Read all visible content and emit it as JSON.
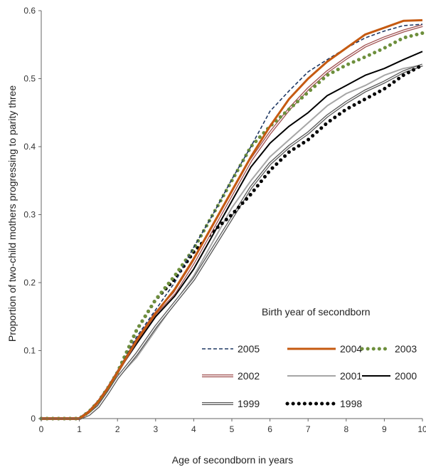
{
  "chart_data": {
    "type": "line",
    "xlabel": "Age of secondborn in years",
    "ylabel": "Proportion of two-child mothers progressing to parity three",
    "xlim": [
      0,
      10
    ],
    "ylim": [
      0,
      0.6
    ],
    "x_ticks": [
      "0",
      "1",
      "2",
      "3",
      "4",
      "5",
      "6",
      "7",
      "8",
      "9",
      "10"
    ],
    "y_ticks": [
      "0",
      "0.1",
      "0.2",
      "0.3",
      "0.4",
      "0.5",
      "0.6"
    ],
    "grid": false,
    "legend": {
      "title": "Birth year of secondborn",
      "placement": "bottom-right"
    },
    "x": [
      0,
      0.5,
      1,
      1.25,
      1.5,
      1.75,
      2,
      2.5,
      3,
      3.5,
      4,
      4.5,
      5,
      5.5,
      6,
      6.5,
      7,
      7.5,
      8,
      8.5,
      9,
      9.5,
      10
    ],
    "series": [
      {
        "name": "2005",
        "color": "#1f3864",
        "style": "dashed",
        "values": [
          0,
          0,
          0,
          0.01,
          0.025,
          0.045,
          0.068,
          0.12,
          0.16,
          0.2,
          0.252,
          0.3,
          0.352,
          0.4,
          0.452,
          0.482,
          0.51,
          0.528,
          0.545,
          0.56,
          0.57,
          0.578,
          0.58
        ]
      },
      {
        "name": "2004",
        "color": "#c55a11",
        "style": "thick",
        "values": [
          0,
          0,
          0,
          0.01,
          0.025,
          0.045,
          0.068,
          0.115,
          0.155,
          0.19,
          0.235,
          0.285,
          0.335,
          0.385,
          0.43,
          0.47,
          0.5,
          0.525,
          0.545,
          0.565,
          0.575,
          0.585,
          0.586
        ]
      },
      {
        "name": "2003",
        "color": "#6d8f3c",
        "style": "dotted",
        "values": [
          0,
          0,
          0,
          0.01,
          0.025,
          0.045,
          0.068,
          0.13,
          0.175,
          0.21,
          0.25,
          0.3,
          0.35,
          0.4,
          0.43,
          0.455,
          0.48,
          0.505,
          0.52,
          0.532,
          0.545,
          0.56,
          0.567
        ]
      },
      {
        "name": "2002",
        "color": "#a05050",
        "style": "double",
        "values": [
          0,
          0,
          0,
          0.01,
          0.025,
          0.045,
          0.068,
          0.115,
          0.155,
          0.185,
          0.23,
          0.28,
          0.33,
          0.38,
          0.42,
          0.455,
          0.485,
          0.51,
          0.53,
          0.548,
          0.56,
          0.57,
          0.578
        ]
      },
      {
        "name": "2001",
        "color": "#a6a6a6",
        "style": "solid",
        "values": [
          0,
          0,
          0,
          0.008,
          0.02,
          0.04,
          0.06,
          0.09,
          0.13,
          0.17,
          0.21,
          0.26,
          0.31,
          0.35,
          0.385,
          0.41,
          0.435,
          0.46,
          0.478,
          0.49,
          0.505,
          0.515,
          0.52
        ]
      },
      {
        "name": "2000",
        "color": "#000000",
        "style": "solid",
        "values": [
          0,
          0,
          0,
          0.01,
          0.025,
          0.045,
          0.068,
          0.11,
          0.15,
          0.18,
          0.22,
          0.27,
          0.32,
          0.37,
          0.405,
          0.43,
          0.45,
          0.475,
          0.49,
          0.505,
          0.515,
          0.528,
          0.54
        ]
      },
      {
        "name": "1999",
        "color": "#595959",
        "style": "double",
        "values": [
          0,
          0,
          0,
          0.006,
          0.018,
          0.038,
          0.06,
          0.095,
          0.135,
          0.17,
          0.205,
          0.25,
          0.295,
          0.34,
          0.375,
          0.4,
          0.42,
          0.445,
          0.465,
          0.482,
          0.495,
          0.51,
          0.52
        ]
      },
      {
        "name": "1998",
        "color": "#000000",
        "style": "dotted",
        "values": [
          0,
          0,
          0,
          0.01,
          0.025,
          0.045,
          0.068,
          0.13,
          0.175,
          0.205,
          0.245,
          0.275,
          0.3,
          0.33,
          0.365,
          0.392,
          0.41,
          0.435,
          0.455,
          0.47,
          0.485,
          0.505,
          0.52
        ]
      }
    ]
  }
}
